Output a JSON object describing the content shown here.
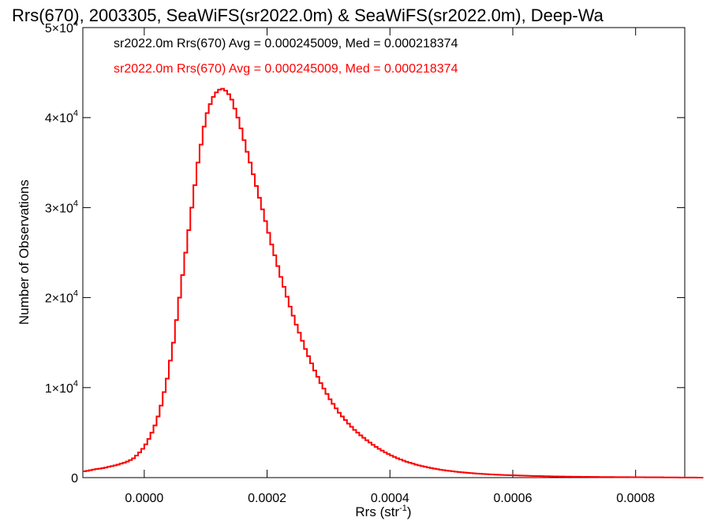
{
  "chart_data": {
    "type": "histogram",
    "title": "Rrs(670), 2003305, SeaWiFS(sr2022.0m) & SeaWiFS(sr2022.0m), Deep-Wa",
    "xlabel": "Rrs (str",
    "xlabel_sup": "-1",
    "xlabel_close": ")",
    "ylabel": "Number of Observations",
    "xlim": [
      -0.0001,
      0.00088
    ],
    "ylim": [
      0,
      50000
    ],
    "x_ticks": [
      0.0,
      0.0002,
      0.0004,
      0.0006,
      0.0008
    ],
    "x_tick_labels": [
      "0.0000",
      "0.0002",
      "0.0004",
      "0.0006",
      "0.0008"
    ],
    "y_ticks": [
      0,
      10000,
      20000,
      30000,
      40000,
      50000
    ],
    "y_tick_labels": [
      {
        "base": "0",
        "exp": ""
      },
      {
        "base": "1×10",
        "exp": "4"
      },
      {
        "base": "2×10",
        "exp": "4"
      },
      {
        "base": "3×10",
        "exp": "4"
      },
      {
        "base": "4×10",
        "exp": "4"
      },
      {
        "base": "5×10",
        "exp": "4"
      }
    ],
    "legend": {
      "placement": "top-left",
      "entries": [
        {
          "text": "sr2022.0m Rrs(670) Avg = 0.000245009, Med = 0.000218374",
          "color": "#000000"
        },
        {
          "text": "sr2022.0m Rrs(670) Avg = 0.000245009, Med = 0.000218374",
          "color": "#ff0000"
        }
      ]
    },
    "series": [
      {
        "color": "#000000",
        "style": "step",
        "line_width": 1.5
      },
      {
        "color": "#ff0000",
        "style": "step",
        "line_width": 2
      }
    ],
    "bin_width": 5e-06,
    "x_start": -0.0001,
    "counts": [
      700,
      750,
      820,
      900,
      950,
      1000,
      1050,
      1120,
      1200,
      1280,
      1360,
      1450,
      1550,
      1650,
      1780,
      1950,
      2150,
      2450,
      2800,
      3200,
      3700,
      4300,
      5000,
      5800,
      6800,
      8000,
      9500,
      11000,
      13000,
      15000,
      17500,
      20000,
      22500,
      25000,
      27500,
      30000,
      32500,
      35000,
      37000,
      39000,
      40500,
      41500,
      42300,
      42800,
      43100,
      43200,
      43000,
      42600,
      42000,
      41000,
      40000,
      38800,
      37500,
      36200,
      35000,
      33700,
      32400,
      31100,
      29800,
      28500,
      27200,
      25900,
      24700,
      23500,
      22300,
      21200,
      20100,
      19000,
      18000,
      17000,
      16100,
      15200,
      14300,
      13500,
      12700,
      11900,
      11200,
      10500,
      9900,
      9300,
      8700,
      8200,
      7700,
      7200,
      6800,
      6400,
      6000,
      5650,
      5300,
      5000,
      4700,
      4420,
      4150,
      3900,
      3650,
      3420,
      3200,
      3000,
      2800,
      2620,
      2450,
      2300,
      2150,
      2010,
      1880,
      1760,
      1650,
      1550,
      1450,
      1360,
      1280,
      1200,
      1130,
      1060,
      1000,
      940,
      880,
      830,
      780,
      740,
      700,
      660,
      620,
      590,
      560,
      530,
      500,
      475,
      450,
      425,
      405,
      385,
      365,
      345,
      330,
      315,
      300,
      285,
      272,
      260,
      248,
      236,
      225,
      215,
      205,
      196,
      187,
      178,
      170,
      162,
      155,
      148,
      141,
      135,
      129,
      123,
      118,
      113,
      108,
      103,
      99,
      95,
      91,
      87,
      83,
      80,
      77,
      74,
      71,
      68,
      65,
      62,
      60,
      58,
      56,
      54,
      52,
      50,
      48,
      46,
      44,
      42,
      40,
      38,
      36,
      34,
      32,
      30,
      28,
      26,
      24,
      22,
      20,
      18,
      16,
      14,
      12,
      10,
      8,
      6,
      4,
      2
    ]
  }
}
